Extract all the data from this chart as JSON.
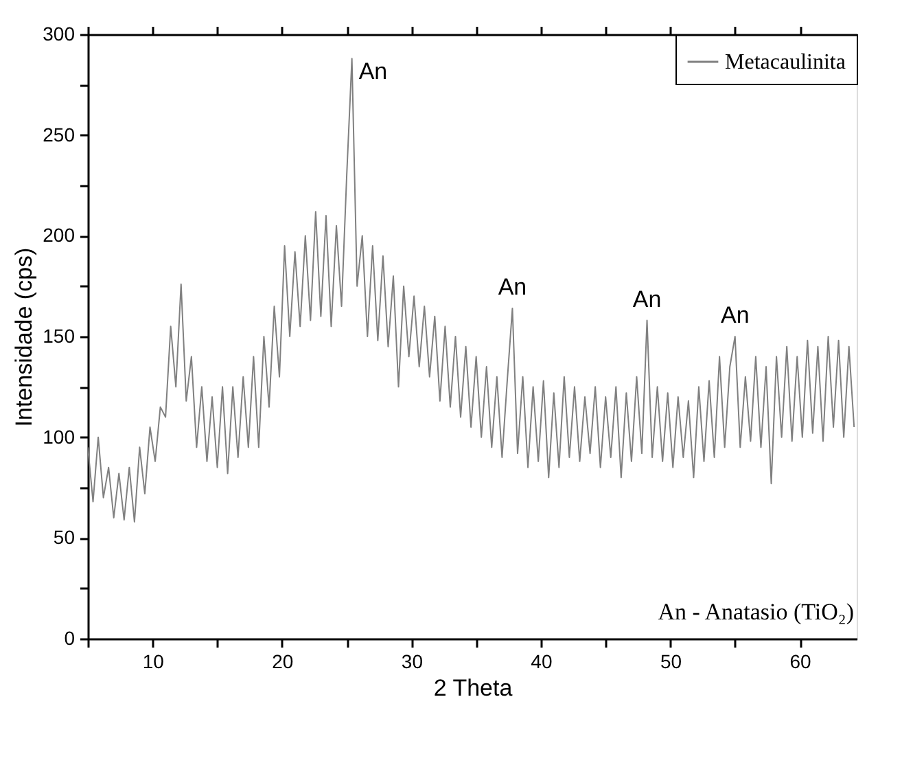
{
  "chart_data": {
    "type": "line",
    "xlabel": "2 Theta",
    "ylabel": "Intensidade (cps)",
    "xlim": [
      5,
      64.4
    ],
    "ylim": [
      0,
      300
    ],
    "xticks": [
      {
        "value": 5,
        "label": null
      },
      10,
      {
        "value": 15,
        "label": null
      },
      20,
      {
        "value": 25,
        "label": null
      },
      30,
      {
        "value": 35,
        "label": null
      },
      40,
      {
        "value": 45,
        "label": null
      },
      50,
      {
        "value": 55,
        "label": null
      },
      60
    ],
    "yticks": [
      0,
      {
        "value": 25,
        "label": null
      },
      50,
      {
        "value": 75,
        "label": null
      },
      100,
      {
        "value": 125,
        "label": null
      },
      150,
      {
        "value": 175,
        "label": null
      },
      200,
      {
        "value": 225,
        "label": null
      },
      250,
      {
        "value": 275,
        "label": null
      },
      300
    ],
    "grid": false,
    "legend": "top right",
    "marker": "none",
    "line_style": "solid",
    "x": [
      5.0,
      5.4,
      5.8,
      6.2,
      6.6,
      7.0,
      7.4,
      7.8,
      8.2,
      8.6,
      9.0,
      9.4,
      9.8,
      10.2,
      10.6,
      11.0,
      11.4,
      11.8,
      12.2,
      12.6,
      13.0,
      13.4,
      13.8,
      14.2,
      14.6,
      15.0,
      15.4,
      15.8,
      16.2,
      16.6,
      17.0,
      17.4,
      17.8,
      18.2,
      18.6,
      19.0,
      19.4,
      19.8,
      20.2,
      20.6,
      21.0,
      21.4,
      21.8,
      22.2,
      22.6,
      23.0,
      23.4,
      23.8,
      24.2,
      24.6,
      25.0,
      25.4,
      25.8,
      26.2,
      26.6,
      27.0,
      27.4,
      27.8,
      28.2,
      28.6,
      29.0,
      29.4,
      29.8,
      30.2,
      30.6,
      31.0,
      31.4,
      31.8,
      32.2,
      32.6,
      33.0,
      33.4,
      33.8,
      34.2,
      34.6,
      35.0,
      35.4,
      35.8,
      36.2,
      36.6,
      37.0,
      37.4,
      37.8,
      38.2,
      38.6,
      39.0,
      39.4,
      39.8,
      40.2,
      40.6,
      41.0,
      41.4,
      41.8,
      42.2,
      42.6,
      43.0,
      43.4,
      43.8,
      44.2,
      44.6,
      45.0,
      45.4,
      45.8,
      46.2,
      46.6,
      47.0,
      47.4,
      47.8,
      48.2,
      48.6,
      49.0,
      49.4,
      49.8,
      50.2,
      50.6,
      51.0,
      51.4,
      51.8,
      52.2,
      52.6,
      53.0,
      53.4,
      53.8,
      54.2,
      54.6,
      55.0,
      55.4,
      55.8,
      56.2,
      56.6,
      57.0,
      57.4,
      57.8,
      58.2,
      58.6,
      59.0,
      59.4,
      59.8,
      60.2,
      60.6,
      61.0,
      61.4,
      61.8,
      62.2,
      62.6,
      63.0,
      63.4,
      63.8,
      64.2
    ],
    "series": [
      {
        "name": "Metacaulinita",
        "color": "#808080",
        "values": [
          95,
          68,
          100,
          70,
          85,
          60,
          82,
          59,
          85,
          58,
          95,
          72,
          105,
          88,
          115,
          110,
          155,
          125,
          176,
          118,
          140,
          95,
          125,
          88,
          120,
          85,
          125,
          82,
          125,
          90,
          130,
          95,
          140,
          95,
          150,
          115,
          165,
          130,
          195,
          150,
          192,
          155,
          200,
          158,
          212,
          160,
          210,
          155,
          205,
          165,
          230,
          288,
          175,
          200,
          150,
          195,
          148,
          190,
          145,
          180,
          125,
          175,
          140,
          170,
          135,
          165,
          130,
          160,
          118,
          155,
          115,
          150,
          110,
          145,
          105,
          140,
          100,
          135,
          95,
          130,
          90,
          128,
          164,
          92,
          130,
          85,
          125,
          88,
          128,
          80,
          122,
          85,
          130,
          90,
          125,
          88,
          120,
          92,
          125,
          85,
          120,
          90,
          125,
          80,
          122,
          88,
          130,
          92,
          158,
          90,
          125,
          88,
          122,
          85,
          120,
          90,
          118,
          80,
          125,
          88,
          128,
          90,
          140,
          95,
          135,
          150,
          95,
          130,
          98,
          140,
          95,
          135,
          77,
          140,
          100,
          145,
          98,
          140,
          100,
          148,
          102,
          145,
          98,
          150,
          105,
          148,
          100,
          145,
          105
        ]
      }
    ],
    "annotations": [
      {
        "text": "An",
        "x": 25.4,
        "y": 288
      },
      {
        "text": "An",
        "x": 37.8,
        "y": 164
      },
      {
        "text": "An",
        "x": 48.2,
        "y": 158
      },
      {
        "text": "An",
        "x": 55.0,
        "y": 150
      },
      "An - Anatasio (TiO₂)"
    ]
  }
}
